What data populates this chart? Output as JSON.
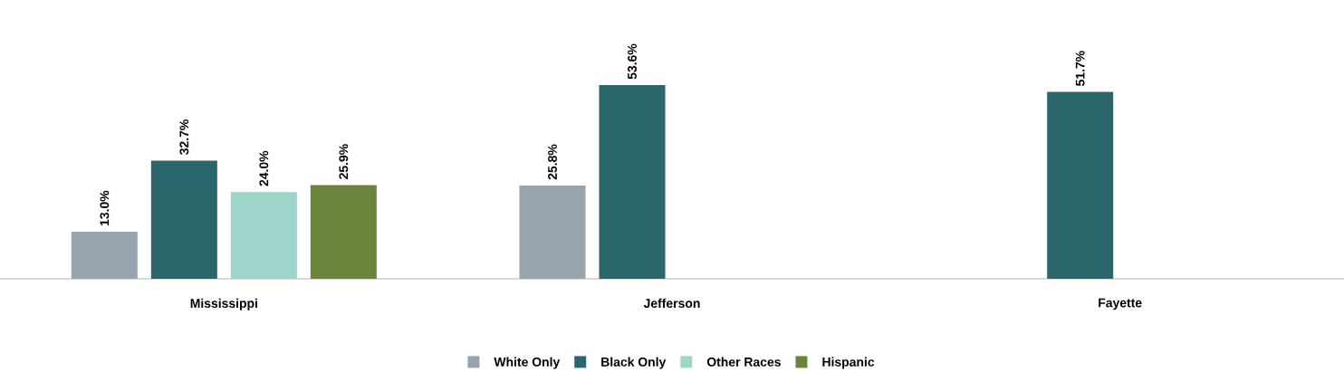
{
  "chart_data": {
    "type": "bar",
    "categories": [
      "Mississippi",
      "Jefferson",
      "Fayette"
    ],
    "series": [
      {
        "name": "White Only",
        "color": "#97a4ae",
        "values": [
          13.0,
          25.8,
          null
        ],
        "value_labels": [
          "13.0%",
          "25.8%",
          null
        ]
      },
      {
        "name": "Black Only",
        "color": "#2a666c",
        "values": [
          32.7,
          53.6,
          51.7
        ],
        "value_labels": [
          "32.7%",
          "53.6%",
          "51.7%"
        ]
      },
      {
        "name": "Other Races",
        "color": "#9dd5cb",
        "values": [
          24.0,
          null,
          null
        ],
        "value_labels": [
          "24.0%",
          null,
          null
        ]
      },
      {
        "name": "Hispanic",
        "color": "#6a843b",
        "values": [
          25.9,
          null,
          null
        ],
        "value_labels": [
          "25.9%",
          null,
          null
        ]
      }
    ],
    "legend": "bottom"
  }
}
